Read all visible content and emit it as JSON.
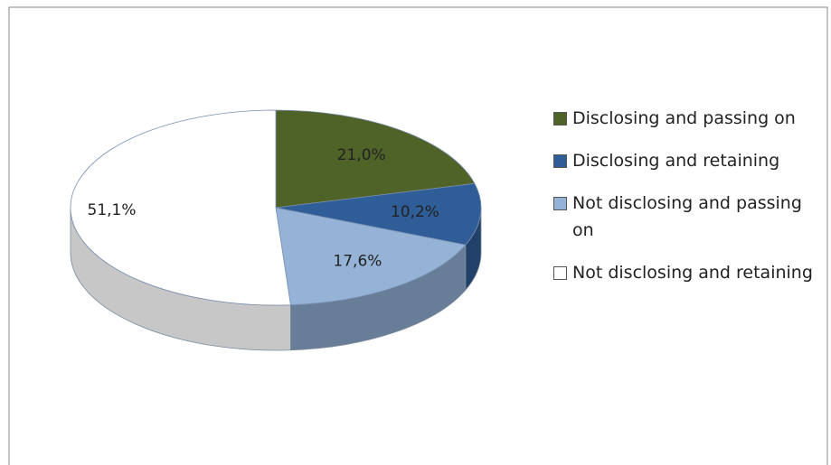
{
  "chart_data": {
    "type": "pie",
    "categories": [
      "Disclosing and passing on",
      "Disclosing and retaining",
      "Not disclosing and passing on",
      "Not disclosing and retaining"
    ],
    "values": [
      21.0,
      10.2,
      17.6,
      51.1
    ],
    "value_labels": [
      "21,0%",
      "10,2%",
      "17,6%",
      "51,1%"
    ],
    "colors": [
      "#4f6228",
      "#2f5d97",
      "#95b3d7",
      "#ffffff"
    ],
    "legend": "right"
  }
}
